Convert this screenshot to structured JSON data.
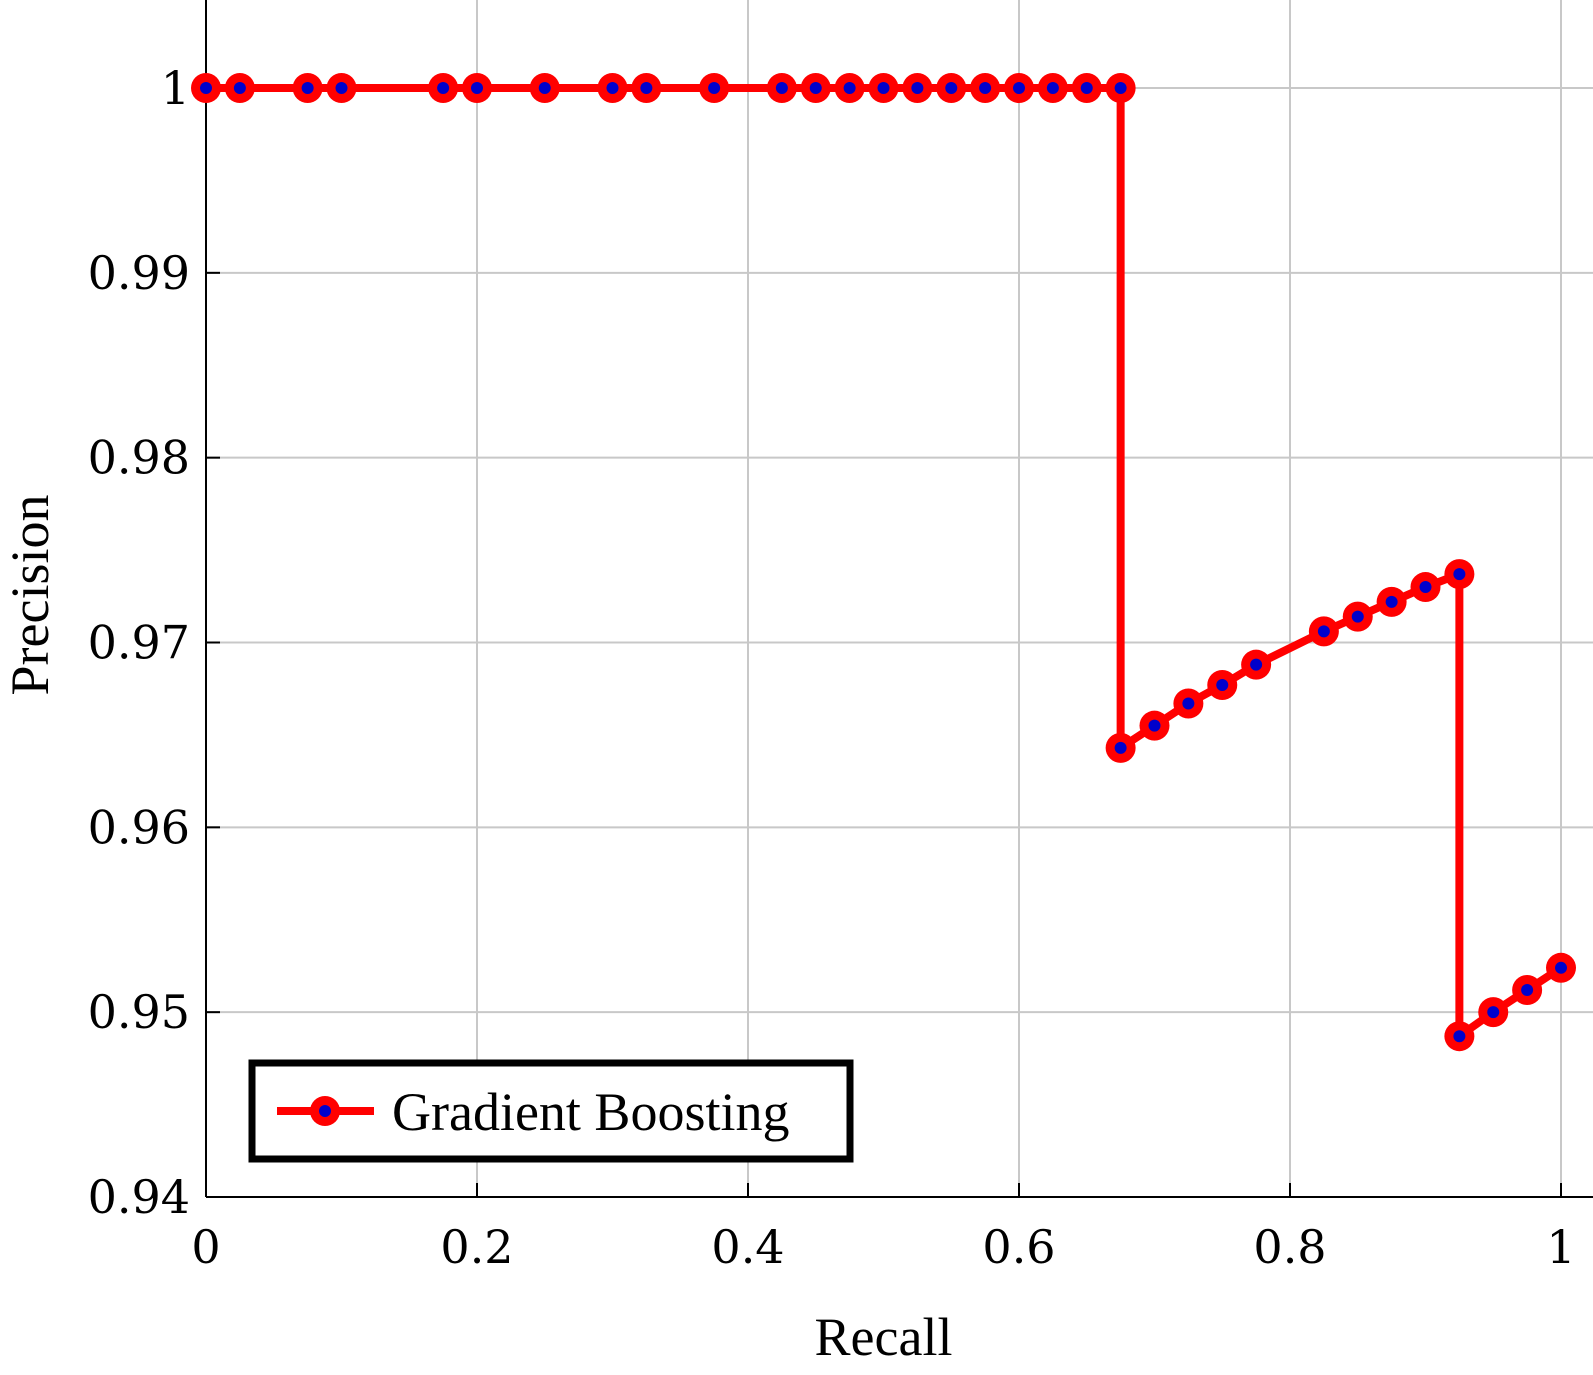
{
  "chart_data": {
    "type": "line",
    "title": "",
    "xlabel": "Recall",
    "ylabel": "Precision",
    "xlim": [
      0,
      1
    ],
    "ylim": [
      0.94,
      1.005
    ],
    "x_ticks": [
      0,
      0.2,
      0.4,
      0.6,
      0.8,
      1
    ],
    "x_tick_labels": [
      "0",
      "0.2",
      "0.4",
      "0.6",
      "0.8",
      "1"
    ],
    "y_ticks": [
      0.94,
      0.95,
      0.96,
      0.97,
      0.98,
      0.99,
      1
    ],
    "y_tick_labels": [
      "0.94",
      "0.95",
      "0.96",
      "0.97",
      "0.98",
      "0.99",
      "1"
    ],
    "grid": true,
    "legend_position": "bottom-left",
    "series": [
      {
        "name": "Gradient Boosting",
        "color": "#ff0000",
        "marker_color": "#0000cc",
        "x": [
          0,
          0.025,
          0.075,
          0.1,
          0.175,
          0.2,
          0.25,
          0.3,
          0.325,
          0.375,
          0.425,
          0.45,
          0.475,
          0.5,
          0.525,
          0.55,
          0.575,
          0.6,
          0.625,
          0.65,
          0.675,
          0.675,
          0.7,
          0.725,
          0.75,
          0.775,
          0.825,
          0.85,
          0.875,
          0.9,
          0.925,
          0.925,
          0.95,
          0.975,
          1
        ],
        "y": [
          1,
          1,
          1,
          1,
          1,
          1,
          1,
          1,
          1,
          1,
          1,
          1,
          1,
          1,
          1,
          1,
          1,
          1,
          1,
          1,
          1,
          0.9643,
          0.9655,
          0.9667,
          0.9677,
          0.9688,
          0.9706,
          0.9714,
          0.9722,
          0.973,
          0.9737,
          0.9487,
          0.95,
          0.9512,
          0.9524
        ]
      }
    ]
  }
}
